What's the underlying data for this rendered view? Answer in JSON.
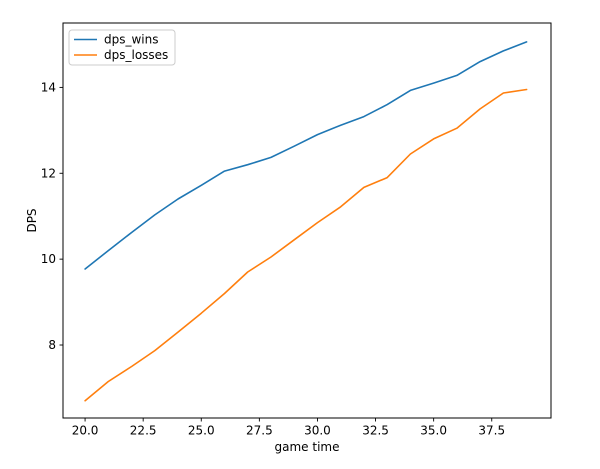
{
  "figure": {
    "background": "#ffffff",
    "spine_color": "#000000",
    "text_color": "#000000",
    "legend_border_color": "#cccccc",
    "legend_background": "#ffffff"
  },
  "chart_data": {
    "type": "line",
    "title": "",
    "xlabel": "game time",
    "ylabel": "DPS",
    "x": [
      20,
      21,
      22,
      23,
      24,
      25,
      26,
      27,
      28,
      29,
      30,
      31,
      32,
      33,
      34,
      35,
      36,
      37,
      38,
      39
    ],
    "series": [
      {
        "name": "dps_wins",
        "color": "#1f77b4",
        "values": [
          9.77,
          10.2,
          10.62,
          11.03,
          11.4,
          11.72,
          12.05,
          12.2,
          12.37,
          12.63,
          12.9,
          13.12,
          13.32,
          13.6,
          13.93,
          14.1,
          14.28,
          14.6,
          14.85,
          15.06
        ]
      },
      {
        "name": "dps_losses",
        "color": "#ff7f0e",
        "values": [
          6.7,
          7.15,
          7.5,
          7.87,
          8.3,
          8.74,
          9.2,
          9.7,
          10.05,
          10.45,
          10.85,
          11.22,
          11.67,
          11.9,
          12.45,
          12.8,
          13.05,
          13.5,
          13.87,
          13.95
        ]
      }
    ],
    "xlim": [
      19.05,
      40.05
    ],
    "ylim": [
      6.3,
      15.5
    ],
    "xticks": [
      20.0,
      22.5,
      25.0,
      27.5,
      30.0,
      32.5,
      35.0,
      37.5
    ],
    "xtick_labels": [
      "20.0",
      "22.5",
      "25.0",
      "27.5",
      "30.0",
      "32.5",
      "35.0",
      "37.5"
    ],
    "yticks": [
      8,
      10,
      12,
      14
    ],
    "ytick_labels": [
      "8",
      "10",
      "12",
      "14"
    ],
    "grid": false,
    "legend_position": "upper left"
  }
}
